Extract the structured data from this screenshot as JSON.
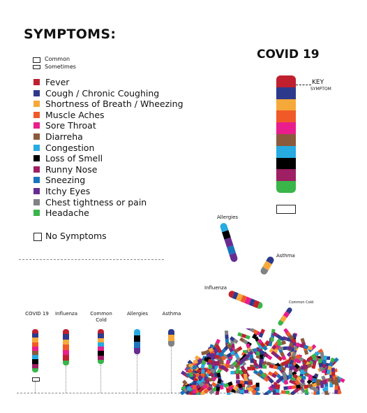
{
  "header": {
    "title": "SYMPTOMS:"
  },
  "key": {
    "common": "Common",
    "sometimes": "Sometimes"
  },
  "symptoms": [
    {
      "label": "Fever",
      "color": "#c0202e"
    },
    {
      "label": "Cough / Chronic Coughing",
      "color": "#2d3a8c"
    },
    {
      "label": "Shortness of Breath / Wheezing",
      "color": "#f6a93b"
    },
    {
      "label": "Muscle Aches",
      "color": "#f05a28"
    },
    {
      "label": "Sore Throat",
      "color": "#e91e8c"
    },
    {
      "label": "Diarreha",
      "color": "#8b5a3c"
    },
    {
      "label": "Congestion",
      "color": "#27aae1"
    },
    {
      "label": "Loss of Smell",
      "color": "#000000"
    },
    {
      "label": "Runny Nose",
      "color": "#9e1f63"
    },
    {
      "label": "Sneezing",
      "color": "#1b75bc"
    },
    {
      "label": "Itchy Eyes",
      "color": "#662d91"
    },
    {
      "label": "Chest tightness or pain",
      "color": "#808285"
    },
    {
      "label": "Headache",
      "color": "#39b54a"
    }
  ],
  "no_symptoms": "No Symptoms",
  "covid_panel": {
    "title": "COVID 19",
    "key_label": "KEY",
    "key_sub": "SYMPTOM"
  },
  "floating_labels": {
    "allergies": "Allergies",
    "asthma": "Asthma",
    "influenza": "Influenza",
    "common_cold": "Common Cold"
  },
  "baseline": {
    "covid": "COVID 19",
    "influenza": "Influenza",
    "common_cold": "Common\nCold",
    "allergies": "Allergies",
    "asthma": "Asthma"
  }
}
